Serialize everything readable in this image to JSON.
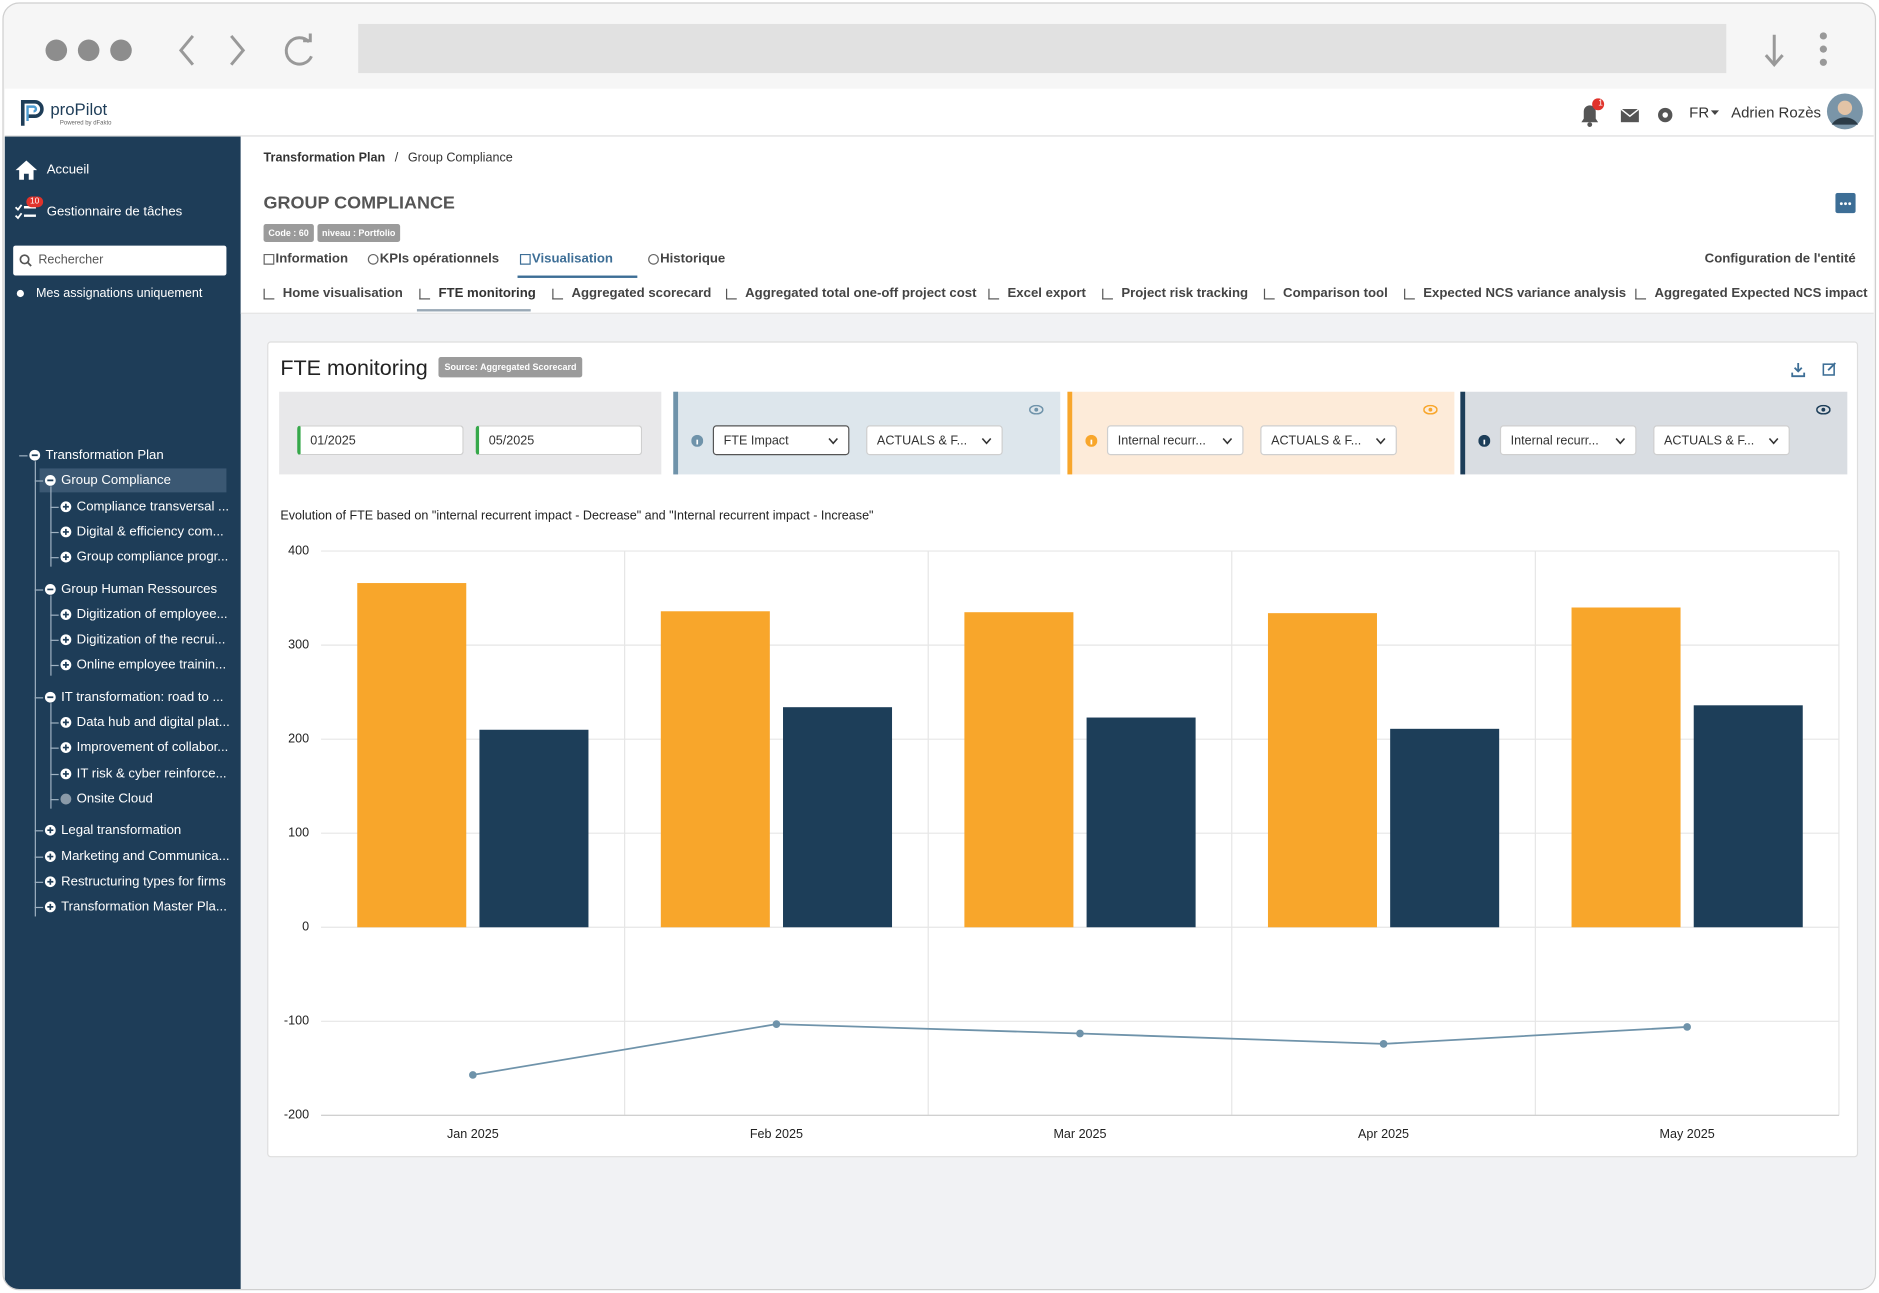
{
  "header": {
    "logo": "proPilot",
    "logo_tagline": "Powered by dFakto",
    "notifications": "1",
    "language": "FR",
    "user": "Adrien Rozès"
  },
  "sidebar": {
    "home": "Accueil",
    "tasks": "Gestionnaire de tâches",
    "tasks_badge": "10",
    "search_placeholder": "Rechercher",
    "my_assignments": "Mes assignations uniquement",
    "tree": [
      {
        "label": "Transformation Plan",
        "state": "expanded",
        "children": [
          {
            "label": "Group Compliance",
            "state": "expanded",
            "selected": true,
            "children": [
              {
                "label": "Compliance transversal ...",
                "state": "collapsed"
              },
              {
                "label": "Digital & efficiency com...",
                "state": "collapsed"
              },
              {
                "label": "Group compliance progr...",
                "state": "collapsed"
              }
            ]
          },
          {
            "label": "Group Human Ressources",
            "state": "expanded",
            "children": [
              {
                "label": "Digitization of employee...",
                "state": "collapsed"
              },
              {
                "label": "Digitization of the recrui...",
                "state": "collapsed"
              },
              {
                "label": "Online employee trainin...",
                "state": "collapsed"
              }
            ]
          },
          {
            "label": "IT transformation: road to ...",
            "state": "expanded",
            "children": [
              {
                "label": "Data hub and digital plat...",
                "state": "collapsed"
              },
              {
                "label": "Improvement of collabor...",
                "state": "collapsed"
              },
              {
                "label": "IT risk & cyber reinforce...",
                "state": "collapsed"
              },
              {
                "label": "Onsite Cloud",
                "state": "leaf"
              }
            ]
          },
          {
            "label": "Legal transformation",
            "state": "collapsed"
          },
          {
            "label": "Marketing and Communica...",
            "state": "collapsed"
          },
          {
            "label": "Restructuring types for firms",
            "state": "collapsed"
          },
          {
            "label": "Transformation Master Pla...",
            "state": "collapsed"
          }
        ]
      }
    ]
  },
  "breadcrumb": {
    "items": [
      "Transformation Plan",
      "Group Compliance"
    ],
    "separator": "/"
  },
  "entity": {
    "title": "GROUP COMPLIANCE",
    "tags": [
      "Code : 60",
      "niveau : Portfolio"
    ]
  },
  "tabs": {
    "items": [
      "Information",
      "KPIs opérationnels",
      "Visualisation",
      "Historique"
    ],
    "active": 2,
    "config": "Configuration de l'entité"
  },
  "subtabs": {
    "items": [
      "Home visualisation",
      "FTE monitoring",
      "Aggregated scorecard",
      "Aggregated total one-off project cost",
      "Excel export",
      "Project risk tracking",
      "Comparison tool",
      "Expected NCS variance analysis",
      "Aggregated Expected NCS impact"
    ],
    "active": 1
  },
  "card": {
    "title": "FTE monitoring",
    "source": "Source: Aggregated Scorecard",
    "filters": {
      "start": "01/2025",
      "end": "05/2025",
      "selects": [
        [
          "FTE Impact",
          "ACTUALS & F..."
        ],
        [
          "Internal recurr...",
          "ACTUALS & F..."
        ],
        [
          "Internal recurr...",
          "ACTUALS & F..."
        ]
      ]
    }
  },
  "chart_data": {
    "type": "bar",
    "title": "Evolution of FTE based on \"internal recurrent impact - Decrease\" and \"Internal recurrent impact - Increase\"",
    "categories": [
      "Jan 2025",
      "Feb 2025",
      "Mar 2025",
      "Apr 2025",
      "May 2025"
    ],
    "series": [
      {
        "type": "bar",
        "color": "#f8a62b",
        "values": [
          366,
          336,
          335,
          334,
          340
        ]
      },
      {
        "type": "bar",
        "color": "#1d3e59",
        "values": [
          210,
          234,
          223,
          211,
          236
        ]
      },
      {
        "type": "line",
        "color": "#6f93aa",
        "values": [
          -157,
          -103,
          -113,
          -124,
          -106
        ]
      }
    ],
    "ylim": [
      -200,
      400
    ],
    "yticks": [
      -200,
      -100,
      0,
      100,
      200,
      300,
      400
    ],
    "grid": true
  }
}
